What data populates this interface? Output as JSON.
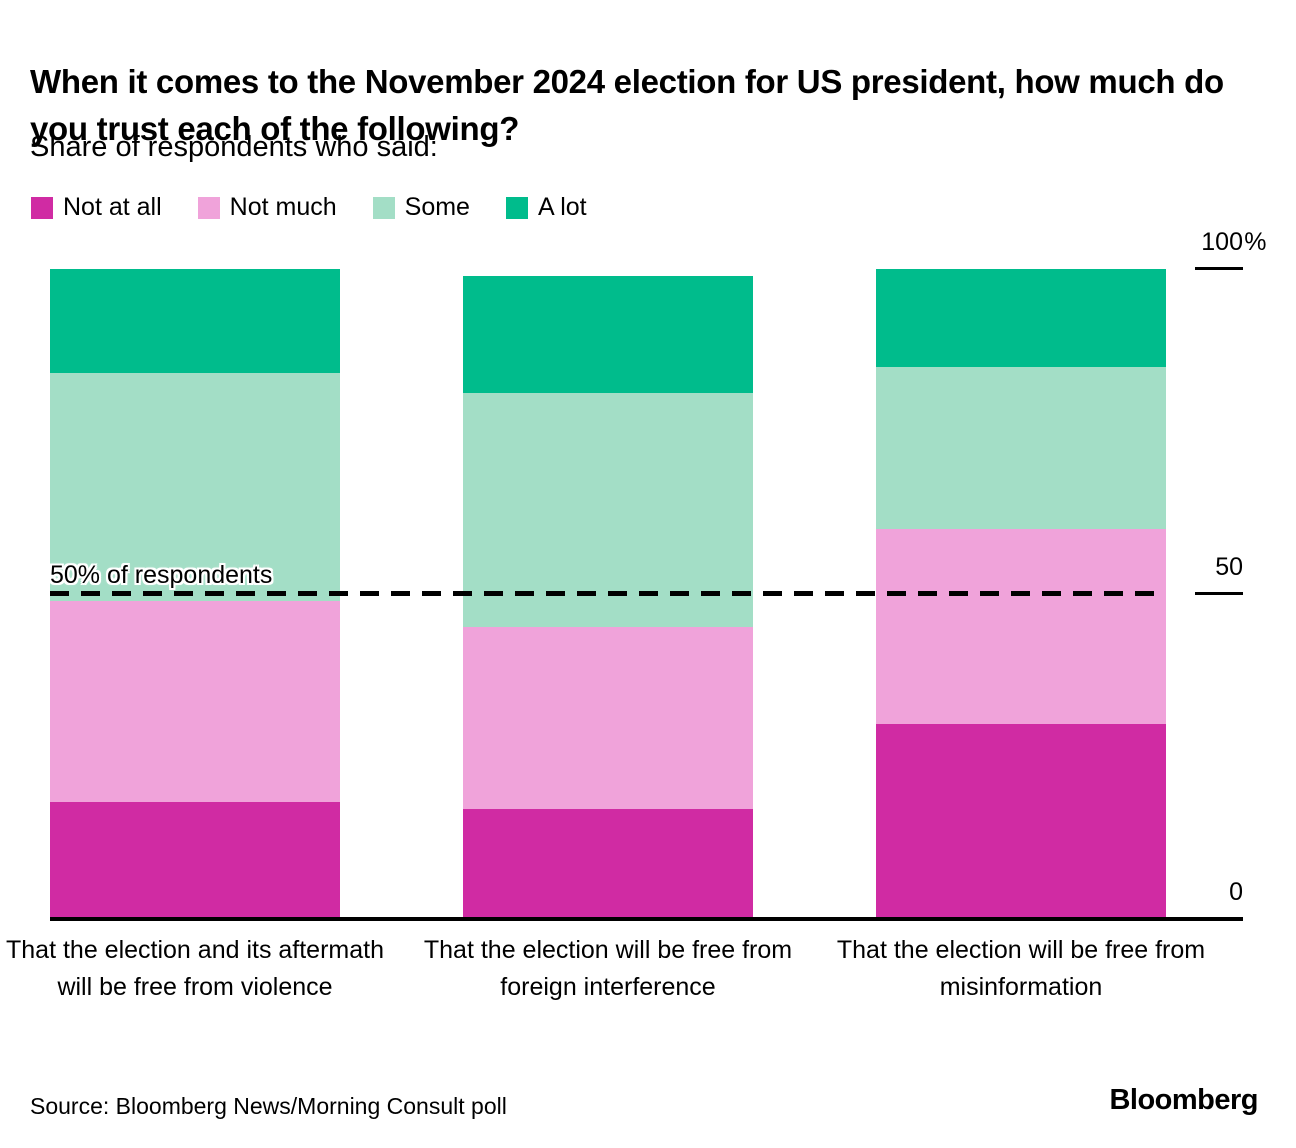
{
  "chart_data": {
    "type": "bar",
    "stacked": true,
    "unit": "%",
    "title": "When it comes to the November 2024 election for US president, how much do you trust each of the following?",
    "subtitle": "Share of respondents who said:",
    "categories": [
      "That the election and its aftermath will be free from violence",
      "That the election will be free from foreign interference",
      "That the election will be free from misinformation"
    ],
    "series": [
      {
        "name": "Not at all",
        "color": "#D02BA3",
        "values": [
          18,
          17,
          30
        ]
      },
      {
        "name": "Not much",
        "color": "#F0A3DA",
        "values": [
          31,
          28,
          30
        ]
      },
      {
        "name": "Some",
        "color": "#A3DEC6",
        "values": [
          35,
          36,
          25
        ]
      },
      {
        "name": "A lot",
        "color": "#00BC8C",
        "values": [
          16,
          18,
          15
        ]
      }
    ],
    "y_axis": {
      "range": [
        0,
        100
      ],
      "ticks": [
        {
          "value": "100",
          "suffix": "%",
          "pct": 100
        },
        {
          "value": "50",
          "suffix": "",
          "pct": 50
        },
        {
          "value": "0",
          "suffix": "",
          "pct": 0
        }
      ]
    },
    "annotation": {
      "label": "50% of respondents",
      "pct": 50
    },
    "legend_position": "top",
    "grid": false
  },
  "footer": {
    "source": "Source: Bloomberg News/Morning Consult poll",
    "brand": "Bloomberg"
  }
}
